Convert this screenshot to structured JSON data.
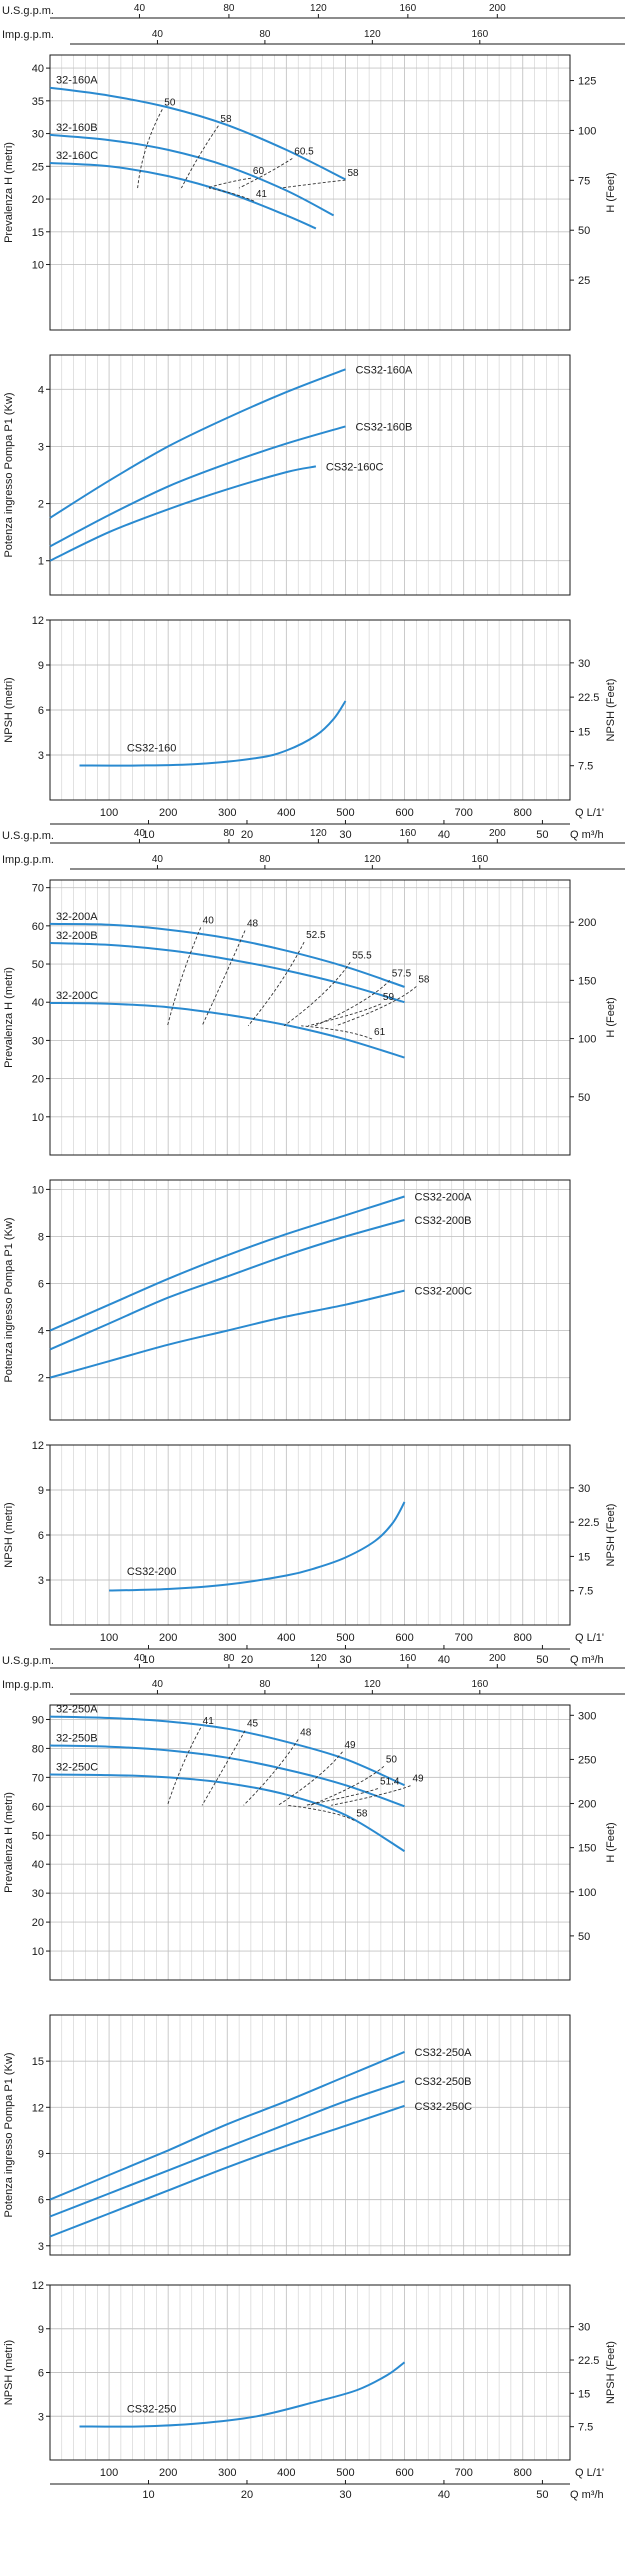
{
  "chart_data": [
    {
      "family": "CS32-160",
      "qh": {
        "type": "line",
        "usgpm_label": "U.S.g.p.m.",
        "usgpm_ticks": [
          "40",
          "80",
          "120",
          "160",
          "200"
        ],
        "impgpm_label": "Imp.g.p.m.",
        "impgpm_ticks": [
          "40",
          "80",
          "120",
          "160"
        ],
        "ylabel": "Prevalenza H (metri)",
        "ylim": [
          0,
          42
        ],
        "yticks": [
          "10",
          "15",
          "20",
          "25",
          "30",
          "35",
          "40"
        ],
        "y2label": "H (Feet)",
        "y2ticks": [
          "25",
          "50",
          "75",
          "100",
          "125"
        ],
        "series": [
          {
            "name": "32-160A",
            "x": [
              0,
              100,
              200,
              300,
              400,
              500
            ],
            "y": [
              37,
              35.8,
              34,
              31.3,
              27.5,
              23
            ]
          },
          {
            "name": "32-160B",
            "x": [
              0,
              100,
              200,
              300,
              400,
              480
            ],
            "y": [
              29.8,
              29,
              27.5,
              25,
              21.3,
              17.5
            ]
          },
          {
            "name": "32-160C",
            "x": [
              0,
              100,
              200,
              300,
              400,
              450
            ],
            "y": [
              25.5,
              25,
              23.5,
              21,
              17.5,
              15.5
            ]
          }
        ],
        "efficiency_labels": [
          {
            "text": "50",
            "x": 190,
            "y": 34.3
          },
          {
            "text": "58",
            "x": 285,
            "y": 31.8
          },
          {
            "text": "60.5",
            "x": 410,
            "y": 26.8
          },
          {
            "text": "60",
            "x": 340,
            "y": 23.8
          },
          {
            "text": "58",
            "x": 500,
            "y": 23.5
          },
          {
            "text": "41",
            "x": 345,
            "y": 20.3
          }
        ]
      },
      "power": {
        "type": "line",
        "ylabel": "Potenza ingresso Pompa P1 (Kw)",
        "ylim": [
          0.4,
          4.6
        ],
        "yticks": [
          "1",
          "2",
          "3",
          "4"
        ],
        "series": [
          {
            "name": "CS32-160A",
            "x": [
              0,
              100,
              200,
              300,
              400,
              500
            ],
            "y": [
              1.75,
              2.4,
              3.0,
              3.5,
              3.95,
              4.35
            ]
          },
          {
            "name": "CS32-160B",
            "x": [
              0,
              100,
              200,
              300,
              400,
              500
            ],
            "y": [
              1.25,
              1.8,
              2.3,
              2.7,
              3.05,
              3.35
            ]
          },
          {
            "name": "CS32-160C",
            "x": [
              0,
              100,
              200,
              300,
              400,
              450
            ],
            "y": [
              1.0,
              1.5,
              1.9,
              2.25,
              2.55,
              2.65
            ]
          }
        ]
      },
      "npsh": {
        "type": "line",
        "ylabel": "NPSH (metri)",
        "ylim": [
          0,
          12
        ],
        "yticks": [
          "3",
          "6",
          "9",
          "12"
        ],
        "y2label": "NPSH (Feet)",
        "y2ticks": [
          "7.5",
          "15",
          "22.5",
          "30"
        ],
        "series": [
          {
            "name": "CS32-160",
            "x": [
              50,
              150,
              250,
              350,
              400,
              450,
              480,
              500
            ],
            "y": [
              2.3,
              2.3,
              2.4,
              2.8,
              3.3,
              4.3,
              5.4,
              6.6
            ]
          }
        ]
      },
      "q_ls_label": "Q  L/1'",
      "q_ls_ticks": [
        "100",
        "200",
        "300",
        "400",
        "500",
        "600",
        "700",
        "800"
      ],
      "q_m3h_label": "Q  m³/h",
      "q_m3h_ticks": [
        "10",
        "20",
        "30",
        "40",
        "50"
      ]
    },
    {
      "family": "CS32-200",
      "qh": {
        "type": "line",
        "usgpm_label": "U.S.g.p.m.",
        "usgpm_ticks": [
          "40",
          "80",
          "120",
          "160",
          "200"
        ],
        "impgpm_label": "Imp.g.p.m.",
        "impgpm_ticks": [
          "40",
          "80",
          "120",
          "160"
        ],
        "ylabel": "Prevalenza H (metri)",
        "ylim": [
          0,
          72
        ],
        "yticks": [
          "10",
          "20",
          "30",
          "40",
          "50",
          "60",
          "70"
        ],
        "y2label": "H (Feet)",
        "y2ticks": [
          "50",
          "100",
          "150",
          "200",
          "250"
        ],
        "series": [
          {
            "name": "32-200A",
            "x": [
              0,
              100,
              200,
              300,
              400,
              500,
              600
            ],
            "y": [
              60.5,
              60.3,
              59,
              56.8,
              53.5,
              49.3,
              44
            ]
          },
          {
            "name": "32-200B",
            "x": [
              0,
              100,
              200,
              300,
              400,
              500,
              600
            ],
            "y": [
              55.5,
              55,
              53.6,
              51.3,
              48.3,
              44.6,
              40
            ]
          },
          {
            "name": "32-200C",
            "x": [
              0,
              100,
              200,
              300,
              400,
              500,
              600
            ],
            "y": [
              39.8,
              39.6,
              38.7,
              36.7,
              34,
              30.3,
              25.5
            ]
          }
        ],
        "efficiency_labels": [
          {
            "text": "40",
            "x": 255,
            "y": 60.6
          },
          {
            "text": "48",
            "x": 330,
            "y": 59.8
          },
          {
            "text": "52.5",
            "x": 430,
            "y": 56.8
          },
          {
            "text": "55.5",
            "x": 508,
            "y": 51.5
          },
          {
            "text": "57.5",
            "x": 575,
            "y": 46.8
          },
          {
            "text": "58",
            "x": 620,
            "y": 45.2
          },
          {
            "text": "59",
            "x": 560,
            "y": 40.6
          },
          {
            "text": "61",
            "x": 545,
            "y": 31.4
          }
        ]
      },
      "power": {
        "type": "line",
        "ylabel": "Potenza ingresso Pompa P1 (Kw)",
        "ylim": [
          0.2,
          10.4
        ],
        "yticks": [
          "2",
          "4",
          "6",
          "8",
          "10"
        ],
        "series": [
          {
            "name": "CS32-200A",
            "x": [
              0,
              100,
              200,
              300,
              400,
              500,
              600
            ],
            "y": [
              4.0,
              5.1,
              6.2,
              7.2,
              8.1,
              8.9,
              9.7
            ]
          },
          {
            "name": "CS32-200B",
            "x": [
              0,
              100,
              200,
              300,
              400,
              500,
              600
            ],
            "y": [
              3.2,
              4.3,
              5.4,
              6.3,
              7.2,
              8.0,
              8.7
            ]
          },
          {
            "name": "CS32-200C",
            "x": [
              0,
              100,
              200,
              300,
              400,
              500,
              600
            ],
            "y": [
              2.0,
              2.7,
              3.4,
              4.0,
              4.6,
              5.1,
              5.7
            ]
          }
        ]
      },
      "npsh": {
        "type": "line",
        "ylabel": "NPSH (metri)",
        "ylim": [
          0,
          12
        ],
        "yticks": [
          "3",
          "6",
          "9",
          "12"
        ],
        "y2label": "NPSH (Feet)",
        "y2ticks": [
          "7.5",
          "15",
          "22.5",
          "30"
        ],
        "series": [
          {
            "name": "CS32-200",
            "x": [
              100,
              200,
              300,
              400,
              450,
              500,
              550,
              580,
              600
            ],
            "y": [
              2.3,
              2.4,
              2.7,
              3.3,
              3.8,
              4.5,
              5.6,
              6.8,
              8.2
            ]
          }
        ]
      },
      "q_ls_label": "Q  L/1'",
      "q_ls_ticks": [
        "100",
        "200",
        "300",
        "400",
        "500",
        "600",
        "700",
        "800"
      ],
      "q_m3h_label": "Q  m³/h",
      "q_m3h_ticks": [
        "10",
        "20",
        "30",
        "40",
        "50"
      ]
    },
    {
      "family": "CS32-250",
      "qh": {
        "type": "line",
        "usgpm_label": "U.S.g.p.m.",
        "usgpm_ticks": [
          "40",
          "80",
          "120",
          "160",
          "200"
        ],
        "impgpm_label": "Imp.g.p.m.",
        "impgpm_ticks": [
          "40",
          "80",
          "120",
          "160"
        ],
        "ylabel": "Prevalenza H (metri)",
        "ylim": [
          0,
          95
        ],
        "yticks": [
          "10",
          "20",
          "30",
          "40",
          "50",
          "60",
          "70",
          "80",
          "90"
        ],
        "y2label": "H (Feet)",
        "y2ticks": [
          "50",
          "100",
          "150",
          "200",
          "250",
          "300"
        ],
        "series": [
          {
            "name": "32-250A",
            "x": [
              0,
              100,
              200,
              300,
              400,
              500,
              600
            ],
            "y": [
              91,
              90.5,
              89.3,
              86.8,
              82.3,
              76.3,
              67.3
            ]
          },
          {
            "name": "32-250B",
            "x": [
              0,
              100,
              200,
              300,
              400,
              500,
              600
            ],
            "y": [
              81,
              80.6,
              79.3,
              76.8,
              72.7,
              67.3,
              60
            ]
          },
          {
            "name": "32-250C",
            "x": [
              0,
              100,
              200,
              300,
              400,
              500,
              600
            ],
            "y": [
              71,
              70.8,
              70,
              68,
              64,
              57,
              44.5
            ]
          }
        ],
        "efficiency_labels": [
          {
            "text": "41",
            "x": 255,
            "y": 88.5
          },
          {
            "text": "45",
            "x": 330,
            "y": 87.5
          },
          {
            "text": "48",
            "x": 420,
            "y": 84.5
          },
          {
            "text": "49",
            "x": 495,
            "y": 80.2
          },
          {
            "text": "50",
            "x": 565,
            "y": 75.2
          },
          {
            "text": "51.4",
            "x": 555,
            "y": 67.5
          },
          {
            "text": "49",
            "x": 610,
            "y": 68.5
          },
          {
            "text": "58",
            "x": 515,
            "y": 56.5
          }
        ]
      },
      "power": {
        "type": "line",
        "ylabel": "Potenza ingresso Pompa P1 (Kw)",
        "ylim": [
          2.4,
          18
        ],
        "yticks": [
          "3",
          "6",
          "9",
          "12",
          "15"
        ],
        "series": [
          {
            "name": "CS32-250A",
            "x": [
              0,
              100,
              200,
              300,
              400,
              500,
              600
            ],
            "y": [
              6.0,
              7.6,
              9.2,
              10.9,
              12.4,
              14.0,
              15.6
            ]
          },
          {
            "name": "CS32-250B",
            "x": [
              0,
              100,
              200,
              300,
              400,
              500,
              600
            ],
            "y": [
              4.9,
              6.4,
              7.9,
              9.4,
              10.9,
              12.4,
              13.7
            ]
          },
          {
            "name": "CS32-250C",
            "x": [
              0,
              100,
              200,
              300,
              400,
              500,
              600
            ],
            "y": [
              3.6,
              5.1,
              6.6,
              8.1,
              9.5,
              10.8,
              12.1
            ]
          }
        ]
      },
      "npsh": {
        "type": "line",
        "ylabel": "NPSH (metri)",
        "ylim": [
          0,
          12
        ],
        "yticks": [
          "3",
          "6",
          "9",
          "12"
        ],
        "y2label": "NPSH (Feet)",
        "y2ticks": [
          "7.5",
          "15",
          "22.5",
          "30"
        ],
        "series": [
          {
            "name": "CS32-250",
            "x": [
              50,
              150,
              250,
              350,
              450,
              520,
              570,
              600
            ],
            "y": [
              2.3,
              2.3,
              2.5,
              3.0,
              4.0,
              4.8,
              5.8,
              6.7
            ]
          }
        ]
      },
      "q_ls_label": "Q  L/1'",
      "q_ls_ticks": [
        "100",
        "200",
        "300",
        "400",
        "500",
        "600",
        "700",
        "800"
      ],
      "q_m3h_label": "Q  m³/h",
      "q_m3h_ticks": [
        "10",
        "20",
        "30",
        "40",
        "50"
      ]
    }
  ],
  "colors": {
    "curve": "#2a8ad0",
    "axis": "#1a1a1a",
    "grid": "#c4c4c4",
    "dash": "#333333"
  }
}
